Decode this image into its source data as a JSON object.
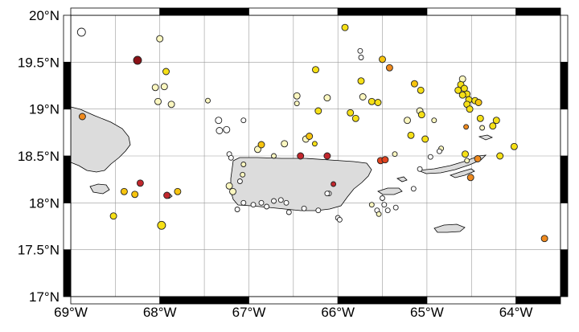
{
  "map": {
    "extent": {
      "lon_min": -69,
      "lon_max": -63.5,
      "lat_min": 17,
      "lat_max": 20
    },
    "x_ticks": [
      {
        "lon": -69,
        "label": "69°W"
      },
      {
        "lon": -68,
        "label": "68°W"
      },
      {
        "lon": -67,
        "label": "67°W"
      },
      {
        "lon": -66,
        "label": "66°W"
      },
      {
        "lon": -65,
        "label": "65°W"
      },
      {
        "lon": -64,
        "label": "64°W"
      }
    ],
    "y_ticks": [
      {
        "lat": 20.0,
        "label": "20°N"
      },
      {
        "lat": 19.5,
        "label": "19.5°N"
      },
      {
        "lat": 19.0,
        "label": "19°N"
      },
      {
        "lat": 18.5,
        "label": "18.5°N"
      },
      {
        "lat": 18.0,
        "label": "18°N"
      },
      {
        "lat": 17.5,
        "label": "17.5°N"
      },
      {
        "lat": 17.0,
        "label": "17°N"
      }
    ],
    "colors": {
      "land": "#dcdcdc",
      "grid": "#9a9a9a",
      "frame": "#000000",
      "marker_stroke": "#222222",
      "white": "#ffffff",
      "pale_yellow": "#fbf7c0",
      "yellow": "#f6e016",
      "amber": "#f7c40e",
      "orange": "#ef8a1e",
      "red_orange": "#e0431f",
      "red": "#c1272d",
      "dark_red": "#8b1116"
    },
    "events": [
      {
        "lon": -68.88,
        "lat": 19.82,
        "r": 5,
        "c": "white"
      },
      {
        "lon": -68.25,
        "lat": 19.52,
        "r": 5,
        "c": "dark_red"
      },
      {
        "lon": -68.0,
        "lat": 19.75,
        "r": 4,
        "c": "pale_yellow"
      },
      {
        "lon": -67.93,
        "lat": 19.4,
        "r": 4,
        "c": "yellow"
      },
      {
        "lon": -68.05,
        "lat": 19.23,
        "r": 4,
        "c": "pale_yellow"
      },
      {
        "lon": -67.95,
        "lat": 19.24,
        "r": 4,
        "c": "pale_yellow"
      },
      {
        "lon": -68.02,
        "lat": 19.08,
        "r": 4,
        "c": "pale_yellow"
      },
      {
        "lon": -67.87,
        "lat": 19.05,
        "r": 4,
        "c": "pale_yellow"
      },
      {
        "lon": -68.87,
        "lat": 18.92,
        "r": 4,
        "c": "orange"
      },
      {
        "lon": -68.22,
        "lat": 18.21,
        "r": 4,
        "c": "red"
      },
      {
        "lon": -68.4,
        "lat": 18.12,
        "r": 4,
        "c": "amber"
      },
      {
        "lon": -68.28,
        "lat": 18.09,
        "r": 4,
        "c": "amber"
      },
      {
        "lon": -67.92,
        "lat": 18.08,
        "r": 4,
        "c": "red"
      },
      {
        "lon": -67.8,
        "lat": 18.12,
        "r": 4,
        "c": "amber"
      },
      {
        "lon": -68.52,
        "lat": 17.86,
        "r": 4,
        "c": "yellow"
      },
      {
        "lon": -67.98,
        "lat": 17.76,
        "r": 5,
        "c": "yellow"
      },
      {
        "lon": -67.46,
        "lat": 19.09,
        "r": 3,
        "c": "pale_yellow"
      },
      {
        "lon": -67.34,
        "lat": 18.88,
        "r": 4,
        "c": "white"
      },
      {
        "lon": -67.33,
        "lat": 18.77,
        "r": 4,
        "c": "white"
      },
      {
        "lon": -67.25,
        "lat": 18.78,
        "r": 4,
        "c": "white"
      },
      {
        "lon": -67.06,
        "lat": 18.88,
        "r": 3,
        "c": "white"
      },
      {
        "lon": -67.22,
        "lat": 18.52,
        "r": 3,
        "c": "white"
      },
      {
        "lon": -67.2,
        "lat": 18.48,
        "r": 3,
        "c": "white"
      },
      {
        "lon": -67.06,
        "lat": 18.41,
        "r": 3,
        "c": "pale_yellow"
      },
      {
        "lon": -67.07,
        "lat": 18.3,
        "r": 3,
        "c": "pale_yellow"
      },
      {
        "lon": -67.22,
        "lat": 18.18,
        "r": 4,
        "c": "pale_yellow"
      },
      {
        "lon": -67.18,
        "lat": 18.12,
        "r": 4,
        "c": "pale_yellow"
      },
      {
        "lon": -67.1,
        "lat": 18.23,
        "r": 3,
        "c": "white"
      },
      {
        "lon": -67.06,
        "lat": 18.0,
        "r": 3,
        "c": "white"
      },
      {
        "lon": -67.13,
        "lat": 17.93,
        "r": 3,
        "c": "white"
      },
      {
        "lon": -66.95,
        "lat": 17.98,
        "r": 3,
        "c": "white"
      },
      {
        "lon": -66.86,
        "lat": 18.0,
        "r": 3,
        "c": "white"
      },
      {
        "lon": -66.8,
        "lat": 17.96,
        "r": 3,
        "c": "white"
      },
      {
        "lon": -66.72,
        "lat": 18.02,
        "r": 3,
        "c": "white"
      },
      {
        "lon": -66.64,
        "lat": 18.03,
        "r": 3,
        "c": "white"
      },
      {
        "lon": -66.58,
        "lat": 18.0,
        "r": 3,
        "c": "white"
      },
      {
        "lon": -66.55,
        "lat": 17.9,
        "r": 3,
        "c": "white"
      },
      {
        "lon": -66.38,
        "lat": 17.94,
        "r": 3,
        "c": "white"
      },
      {
        "lon": -66.22,
        "lat": 17.92,
        "r": 3,
        "c": "white"
      },
      {
        "lon": -66.0,
        "lat": 17.84,
        "r": 3,
        "c": "white"
      },
      {
        "lon": -65.98,
        "lat": 17.82,
        "r": 3,
        "c": "white"
      },
      {
        "lon": -66.1,
        "lat": 18.1,
        "r": 3,
        "c": "white"
      },
      {
        "lon": -66.05,
        "lat": 18.2,
        "r": 3,
        "c": "red"
      },
      {
        "lon": -66.9,
        "lat": 18.57,
        "r": 4,
        "c": "pale_yellow"
      },
      {
        "lon": -66.86,
        "lat": 18.62,
        "r": 4,
        "c": "amber"
      },
      {
        "lon": -66.72,
        "lat": 18.5,
        "r": 3,
        "c": "pale_yellow"
      },
      {
        "lon": -66.6,
        "lat": 18.63,
        "r": 4,
        "c": "pale_yellow"
      },
      {
        "lon": -66.46,
        "lat": 19.14,
        "r": 4,
        "c": "pale_yellow"
      },
      {
        "lon": -66.46,
        "lat": 19.06,
        "r": 3,
        "c": "pale_yellow"
      },
      {
        "lon": -66.42,
        "lat": 18.5,
        "r": 4,
        "c": "red"
      },
      {
        "lon": -66.36,
        "lat": 18.68,
        "r": 4,
        "c": "pale_yellow"
      },
      {
        "lon": -66.32,
        "lat": 18.71,
        "r": 4,
        "c": "amber"
      },
      {
        "lon": -66.26,
        "lat": 18.63,
        "r": 3,
        "c": "yellow"
      },
      {
        "lon": -66.25,
        "lat": 19.42,
        "r": 4,
        "c": "yellow"
      },
      {
        "lon": -66.22,
        "lat": 18.98,
        "r": 4,
        "c": "yellow"
      },
      {
        "lon": -66.12,
        "lat": 19.12,
        "r": 4,
        "c": "pale_yellow"
      },
      {
        "lon": -66.12,
        "lat": 18.5,
        "r": 4,
        "c": "red"
      },
      {
        "lon": -66.12,
        "lat": 18.1,
        "r": 3,
        "c": "white"
      },
      {
        "lon": -65.92,
        "lat": 19.87,
        "r": 4,
        "c": "yellow"
      },
      {
        "lon": -65.86,
        "lat": 18.96,
        "r": 4,
        "c": "yellow"
      },
      {
        "lon": -65.8,
        "lat": 18.9,
        "r": 4,
        "c": "yellow"
      },
      {
        "lon": -65.75,
        "lat": 19.62,
        "r": 3,
        "c": "white"
      },
      {
        "lon": -65.74,
        "lat": 19.55,
        "r": 3,
        "c": "white"
      },
      {
        "lon": -65.74,
        "lat": 19.3,
        "r": 4,
        "c": "yellow"
      },
      {
        "lon": -65.72,
        "lat": 19.13,
        "r": 4,
        "c": "pale_yellow"
      },
      {
        "lon": -65.62,
        "lat": 19.08,
        "r": 4,
        "c": "yellow"
      },
      {
        "lon": -65.55,
        "lat": 19.07,
        "r": 4,
        "c": "yellow"
      },
      {
        "lon": -65.52,
        "lat": 18.45,
        "r": 4,
        "c": "red_orange"
      },
      {
        "lon": -65.47,
        "lat": 18.46,
        "r": 4,
        "c": "red_orange"
      },
      {
        "lon": -65.5,
        "lat": 19.53,
        "r": 4,
        "c": "amber"
      },
      {
        "lon": -65.42,
        "lat": 19.44,
        "r": 4,
        "c": "orange"
      },
      {
        "lon": -65.62,
        "lat": 17.98,
        "r": 3,
        "c": "pale_yellow"
      },
      {
        "lon": -65.56,
        "lat": 17.92,
        "r": 3,
        "c": "white"
      },
      {
        "lon": -65.48,
        "lat": 17.98,
        "r": 3,
        "c": "white"
      },
      {
        "lon": -65.44,
        "lat": 17.92,
        "r": 3,
        "c": "white"
      },
      {
        "lon": -65.5,
        "lat": 18.05,
        "r": 3,
        "c": "white"
      },
      {
        "lon": -65.54,
        "lat": 17.88,
        "r": 3,
        "c": "pale_yellow"
      },
      {
        "lon": -65.35,
        "lat": 17.95,
        "r": 3,
        "c": "white"
      },
      {
        "lon": -65.36,
        "lat": 18.52,
        "r": 3,
        "c": "pale_yellow"
      },
      {
        "lon": -65.22,
        "lat": 18.88,
        "r": 4,
        "c": "pale_yellow"
      },
      {
        "lon": -65.18,
        "lat": 18.72,
        "r": 4,
        "c": "yellow"
      },
      {
        "lon": -65.14,
        "lat": 19.27,
        "r": 4,
        "c": "amber"
      },
      {
        "lon": -65.07,
        "lat": 19.2,
        "r": 4,
        "c": "yellow"
      },
      {
        "lon": -65.08,
        "lat": 18.98,
        "r": 4,
        "c": "pale_yellow"
      },
      {
        "lon": -65.06,
        "lat": 18.94,
        "r": 4,
        "c": "yellow"
      },
      {
        "lon": -65.02,
        "lat": 18.68,
        "r": 4,
        "c": "yellow"
      },
      {
        "lon": -64.92,
        "lat": 18.88,
        "r": 3,
        "c": "pale_yellow"
      },
      {
        "lon": -64.84,
        "lat": 18.58,
        "r": 3,
        "c": "pale_yellow"
      },
      {
        "lon": -64.86,
        "lat": 18.55,
        "r": 3,
        "c": "white"
      },
      {
        "lon": -64.96,
        "lat": 18.49,
        "r": 3,
        "c": "white"
      },
      {
        "lon": -65.08,
        "lat": 18.36,
        "r": 3,
        "c": "white"
      },
      {
        "lon": -65.15,
        "lat": 18.15,
        "r": 3,
        "c": "white"
      },
      {
        "lon": -64.6,
        "lat": 19.32,
        "r": 4,
        "c": "pale_yellow"
      },
      {
        "lon": -64.62,
        "lat": 19.26,
        "r": 4,
        "c": "yellow"
      },
      {
        "lon": -64.65,
        "lat": 19.2,
        "r": 4,
        "c": "yellow"
      },
      {
        "lon": -64.58,
        "lat": 19.22,
        "r": 4,
        "c": "yellow"
      },
      {
        "lon": -64.55,
        "lat": 19.16,
        "r": 4,
        "c": "yellow"
      },
      {
        "lon": -64.6,
        "lat": 19.15,
        "r": 4,
        "c": "yellow"
      },
      {
        "lon": -64.53,
        "lat": 19.1,
        "r": 4,
        "c": "yellow"
      },
      {
        "lon": -64.55,
        "lat": 19.05,
        "r": 4,
        "c": "yellow"
      },
      {
        "lon": -64.52,
        "lat": 19.0,
        "r": 4,
        "c": "yellow"
      },
      {
        "lon": -64.46,
        "lat": 19.09,
        "r": 4,
        "c": "yellow"
      },
      {
        "lon": -64.42,
        "lat": 19.07,
        "r": 4,
        "c": "amber"
      },
      {
        "lon": -64.4,
        "lat": 18.9,
        "r": 4,
        "c": "yellow"
      },
      {
        "lon": -64.38,
        "lat": 18.8,
        "r": 3,
        "c": "pale_yellow"
      },
      {
        "lon": -64.56,
        "lat": 18.81,
        "r": 3,
        "c": "orange"
      },
      {
        "lon": -64.57,
        "lat": 18.52,
        "r": 4,
        "c": "yellow"
      },
      {
        "lon": -64.55,
        "lat": 18.45,
        "r": 3,
        "c": "pale_yellow"
      },
      {
        "lon": -64.43,
        "lat": 18.47,
        "r": 4,
        "c": "orange"
      },
      {
        "lon": -64.51,
        "lat": 18.27,
        "r": 4,
        "c": "orange"
      },
      {
        "lon": -64.22,
        "lat": 18.88,
        "r": 4,
        "c": "yellow"
      },
      {
        "lon": -64.26,
        "lat": 18.82,
        "r": 4,
        "c": "yellow"
      },
      {
        "lon": -64.18,
        "lat": 18.5,
        "r": 4,
        "c": "yellow"
      },
      {
        "lon": -64.02,
        "lat": 18.6,
        "r": 4,
        "c": "yellow"
      },
      {
        "lon": -63.68,
        "lat": 17.62,
        "r": 4,
        "c": "orange"
      }
    ]
  }
}
